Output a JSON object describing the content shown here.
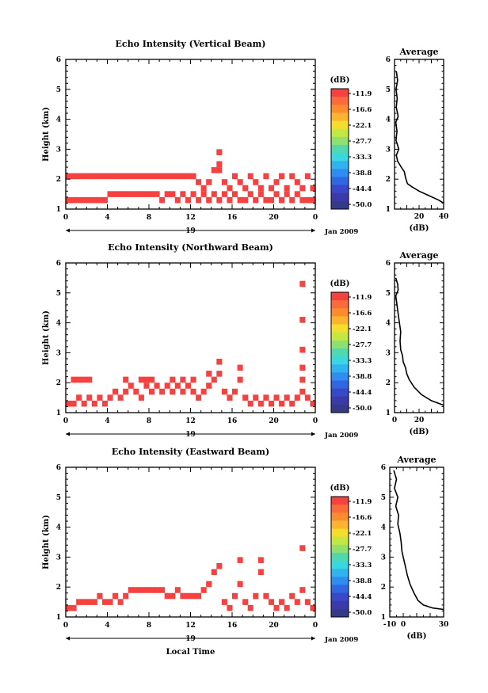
{
  "chart_data": [
    {
      "type": "heatmap",
      "title": "Echo Intensity (Vertical Beam)",
      "ylabel": "Height (km)",
      "xlim": [
        0,
        24
      ],
      "ylim": [
        1,
        6
      ],
      "x_ticks": [
        "0",
        "4",
        "8",
        "12",
        "16",
        "20",
        "0"
      ],
      "y_ticks": [
        "1",
        "2",
        "3",
        "4",
        "5",
        "6"
      ],
      "date_day": "19",
      "date_month": "Jan 2009",
      "colorbar": {
        "unit": "(dB)",
        "labels": [
          "-11.9",
          "-16.6",
          "-22.1",
          "-27.7",
          "-33.3",
          "-38.8",
          "-44.4",
          "-50.0"
        ],
        "colors": [
          "#f5413f",
          "#fa6a3a",
          "#fd8c2f",
          "#fcb430",
          "#f6dc2c",
          "#c4e842",
          "#8fe06f",
          "#50d8b0",
          "#38d8e0",
          "#30b4f0",
          "#2f8cf0",
          "#3065e4",
          "#3848c8",
          "#3a3aa8",
          "#343a88"
        ]
      },
      "cell_hours": 0.25,
      "cell_km": 0.2,
      "fill_color": "#f5413f",
      "echo_cells": [
        [
          0,
          1.3
        ],
        [
          0.5,
          1.3
        ],
        [
          1,
          1.3
        ],
        [
          1.5,
          1.3
        ],
        [
          2,
          1.3
        ],
        [
          2.5,
          1.3
        ],
        [
          3,
          1.3
        ],
        [
          3.5,
          1.3
        ],
        [
          4,
          1.5
        ],
        [
          4.5,
          1.5
        ],
        [
          5,
          1.5
        ],
        [
          5.5,
          1.5
        ],
        [
          6,
          1.5
        ],
        [
          6.5,
          1.5
        ],
        [
          7,
          1.5
        ],
        [
          7.5,
          1.5
        ],
        [
          8,
          1.5
        ],
        [
          8.5,
          1.5
        ],
        [
          9,
          1.3
        ],
        [
          9.5,
          1.5
        ],
        [
          10,
          1.5
        ],
        [
          10.5,
          1.3
        ],
        [
          11,
          1.5
        ],
        [
          11.5,
          1.3
        ],
        [
          12,
          1.5
        ],
        [
          12.5,
          1.3
        ],
        [
          13,
          1.5
        ],
        [
          13.5,
          1.3
        ],
        [
          14,
          1.5
        ],
        [
          14.5,
          1.3
        ],
        [
          15,
          1.5
        ],
        [
          15.5,
          1.3
        ],
        [
          16,
          1.5
        ],
        [
          16.5,
          1.3
        ],
        [
          17,
          1.3
        ],
        [
          17.5,
          1.5
        ],
        [
          18,
          1.3
        ],
        [
          18.5,
          1.5
        ],
        [
          19,
          1.3
        ],
        [
          19.5,
          1.3
        ],
        [
          20,
          1.5
        ],
        [
          20.5,
          1.3
        ],
        [
          21,
          1.5
        ],
        [
          21.5,
          1.3
        ],
        [
          22,
          1.5
        ],
        [
          22.5,
          1.3
        ],
        [
          23,
          1.3
        ],
        [
          23.5,
          1.3
        ],
        [
          0,
          2.1
        ],
        [
          0.5,
          2.1
        ],
        [
          1,
          2.1
        ],
        [
          1.5,
          2.1
        ],
        [
          2,
          2.1
        ],
        [
          2.5,
          2.1
        ],
        [
          3,
          2.1
        ],
        [
          3.5,
          2.1
        ],
        [
          4,
          2.1
        ],
        [
          4.5,
          2.1
        ],
        [
          5,
          2.1
        ],
        [
          5.5,
          2.1
        ],
        [
          6,
          2.1
        ],
        [
          6.5,
          2.1
        ],
        [
          7,
          2.1
        ],
        [
          7.5,
          2.1
        ],
        [
          8,
          2.1
        ],
        [
          8.5,
          2.1
        ],
        [
          9,
          2.1
        ],
        [
          9.5,
          2.1
        ],
        [
          10,
          2.1
        ],
        [
          10.5,
          2.1
        ],
        [
          11,
          2.1
        ],
        [
          11.5,
          2.1
        ],
        [
          12,
          2.1
        ],
        [
          12.5,
          1.9
        ],
        [
          13,
          1.7
        ],
        [
          13.5,
          1.9
        ],
        [
          14,
          2.3
        ],
        [
          14.5,
          2.3
        ],
        [
          14.5,
          2.5
        ],
        [
          14.5,
          2.9
        ],
        [
          15,
          1.9
        ],
        [
          15.5,
          1.7
        ],
        [
          16,
          2.1
        ],
        [
          16.5,
          1.9
        ],
        [
          17,
          1.7
        ],
        [
          17.5,
          2.1
        ],
        [
          18,
          1.9
        ],
        [
          18.5,
          1.7
        ],
        [
          19,
          2.1
        ],
        [
          19.5,
          1.7
        ],
        [
          20,
          1.9
        ],
        [
          20.5,
          2.1
        ],
        [
          21,
          1.7
        ],
        [
          21.5,
          2.1
        ],
        [
          22,
          1.9
        ],
        [
          22.5,
          1.7
        ],
        [
          23,
          2.1
        ],
        [
          23.5,
          1.7
        ]
      ]
    },
    {
      "type": "heatmap",
      "title": "Echo Intensity (Northward Beam)",
      "ylabel": "Height (km)",
      "xlim": [
        0,
        24
      ],
      "ylim": [
        1,
        6
      ],
      "x_ticks": [
        "0",
        "4",
        "8",
        "12",
        "16",
        "20",
        "0"
      ],
      "y_ticks": [
        "1",
        "2",
        "3",
        "4",
        "5",
        "6"
      ],
      "date_day": "19",
      "date_month": "Jan 2009",
      "colorbar": {
        "unit": "(dB)",
        "labels": [
          "-11.9",
          "-16.6",
          "-22.1",
          "-27.7",
          "-33.3",
          "-38.8",
          "-44.4",
          "-50.0"
        ],
        "colors": [
          "#f5413f",
          "#fa6a3a",
          "#fd8c2f",
          "#fcb430",
          "#f6dc2c",
          "#c4e842",
          "#8fe06f",
          "#50d8b0",
          "#38d8e0",
          "#30b4f0",
          "#2f8cf0",
          "#3065e4",
          "#3848c8",
          "#3a3aa8",
          "#343a88"
        ]
      },
      "cell_hours": 0.25,
      "cell_km": 0.2,
      "fill_color": "#f5413f",
      "echo_cells": [
        [
          0,
          1.3
        ],
        [
          0.5,
          1.3
        ],
        [
          1,
          1.5
        ],
        [
          1.5,
          1.3
        ],
        [
          2,
          1.5
        ],
        [
          2.5,
          1.3
        ],
        [
          3,
          1.5
        ],
        [
          3.5,
          1.3
        ],
        [
          4,
          1.5
        ],
        [
          4.5,
          1.7
        ],
        [
          5,
          1.5
        ],
        [
          5.5,
          1.7
        ],
        [
          6,
          1.9
        ],
        [
          6.5,
          1.7
        ],
        [
          7,
          1.5
        ],
        [
          7.5,
          1.9
        ],
        [
          8,
          1.7
        ],
        [
          8.5,
          1.9
        ],
        [
          9,
          1.7
        ],
        [
          9.5,
          1.9
        ],
        [
          10,
          1.7
        ],
        [
          10.5,
          1.9
        ],
        [
          11,
          1.7
        ],
        [
          11.5,
          1.9
        ],
        [
          12,
          1.7
        ],
        [
          12.5,
          1.5
        ],
        [
          13,
          1.7
        ],
        [
          13.5,
          1.9
        ],
        [
          14,
          2.1
        ],
        [
          14.5,
          2.3
        ],
        [
          14.5,
          2.7
        ],
        [
          15,
          1.7
        ],
        [
          15.5,
          1.5
        ],
        [
          16,
          1.7
        ],
        [
          16.5,
          2.1
        ],
        [
          16.5,
          2.5
        ],
        [
          17,
          1.5
        ],
        [
          17.5,
          1.3
        ],
        [
          18,
          1.5
        ],
        [
          18.5,
          1.3
        ],
        [
          19,
          1.5
        ],
        [
          19.5,
          1.3
        ],
        [
          20,
          1.5
        ],
        [
          20.5,
          1.3
        ],
        [
          21,
          1.5
        ],
        [
          21.5,
          1.3
        ],
        [
          22,
          1.5
        ],
        [
          22.5,
          1.7
        ],
        [
          22.5,
          2.1
        ],
        [
          22.5,
          2.5
        ],
        [
          22.5,
          3.1
        ],
        [
          22.5,
          4.1
        ],
        [
          22.5,
          5.3
        ],
        [
          23,
          1.5
        ],
        [
          23.5,
          1.3
        ],
        [
          0.5,
          2.1
        ],
        [
          1,
          2.1
        ],
        [
          1.5,
          2.1
        ],
        [
          2,
          2.1
        ],
        [
          5.5,
          2.1
        ],
        [
          7,
          2.1
        ],
        [
          7.5,
          2.1
        ],
        [
          8,
          2.1
        ],
        [
          10,
          2.1
        ],
        [
          11,
          2.1
        ],
        [
          12,
          2.1
        ],
        [
          13.5,
          2.3
        ]
      ]
    },
    {
      "type": "heatmap",
      "title": "Echo Intensity (Eastward Beam)",
      "ylabel": "Height (km)",
      "xlabel": "Local Time",
      "xlim": [
        0,
        24
      ],
      "ylim": [
        1,
        6
      ],
      "x_ticks": [
        "0",
        "4",
        "8",
        "12",
        "16",
        "20",
        "0"
      ],
      "y_ticks": [
        "1",
        "2",
        "3",
        "4",
        "5",
        "6"
      ],
      "date_day": "19",
      "date_month": "Jan 2009",
      "colorbar": {
        "unit": "(dB)",
        "labels": [
          "-11.9",
          "-16.6",
          "-22.1",
          "-27.7",
          "-33.3",
          "-38.8",
          "-44.4",
          "-50.0"
        ],
        "colors": [
          "#f5413f",
          "#fa6a3a",
          "#fd8c2f",
          "#fcb430",
          "#f6dc2c",
          "#c4e842",
          "#8fe06f",
          "#50d8b0",
          "#38d8e0",
          "#30b4f0",
          "#2f8cf0",
          "#3065e4",
          "#3848c8",
          "#3a3aa8",
          "#343a88"
        ]
      },
      "cell_hours": 0.25,
      "cell_km": 0.2,
      "fill_color": "#f5413f",
      "echo_cells": [
        [
          0,
          1.3
        ],
        [
          0.5,
          1.3
        ],
        [
          1,
          1.5
        ],
        [
          1.5,
          1.5
        ],
        [
          2,
          1.5
        ],
        [
          2.5,
          1.5
        ],
        [
          3,
          1.7
        ],
        [
          3.5,
          1.5
        ],
        [
          4,
          1.5
        ],
        [
          4.5,
          1.7
        ],
        [
          5,
          1.5
        ],
        [
          5.5,
          1.7
        ],
        [
          6,
          1.9
        ],
        [
          6.5,
          1.9
        ],
        [
          7,
          1.9
        ],
        [
          7.5,
          1.9
        ],
        [
          8,
          1.9
        ],
        [
          8.5,
          1.9
        ],
        [
          9,
          1.9
        ],
        [
          9.5,
          1.7
        ],
        [
          10,
          1.7
        ],
        [
          10.5,
          1.9
        ],
        [
          11,
          1.7
        ],
        [
          11.5,
          1.7
        ],
        [
          12,
          1.7
        ],
        [
          12.5,
          1.7
        ],
        [
          13,
          1.9
        ],
        [
          13.5,
          2.1
        ],
        [
          14,
          2.5
        ],
        [
          14.5,
          2.7
        ],
        [
          15,
          1.5
        ],
        [
          15.5,
          1.3
        ],
        [
          16,
          1.7
        ],
        [
          16.5,
          2.1
        ],
        [
          16.5,
          2.9
        ],
        [
          17,
          1.5
        ],
        [
          17.5,
          1.3
        ],
        [
          18,
          1.7
        ],
        [
          18.5,
          2.5
        ],
        [
          18.5,
          2.9
        ],
        [
          19,
          1.7
        ],
        [
          19.5,
          1.5
        ],
        [
          20,
          1.3
        ],
        [
          20.5,
          1.5
        ],
        [
          21,
          1.3
        ],
        [
          21.5,
          1.7
        ],
        [
          22,
          1.5
        ],
        [
          22.5,
          1.9
        ],
        [
          22.5,
          3.3
        ],
        [
          23,
          1.5
        ],
        [
          23.5,
          1.3
        ]
      ]
    },
    {
      "type": "line",
      "title": "Average",
      "xlabel": "(dB)",
      "xlim": [
        0,
        40
      ],
      "ylim": [
        1,
        6
      ],
      "x_ticks": [
        {
          "v": 20,
          "label": "20"
        },
        {
          "v": 40,
          "label": "40"
        }
      ],
      "y_ticks": [
        "1",
        "2",
        "3",
        "4",
        "5",
        "6"
      ],
      "points": [
        [
          1.5,
          5.6
        ],
        [
          2.5,
          5.3
        ],
        [
          1.2,
          5.0
        ],
        [
          2.2,
          4.7
        ],
        [
          1.4,
          4.4
        ],
        [
          3.0,
          4.1
        ],
        [
          1.0,
          3.9
        ],
        [
          2.0,
          3.6
        ],
        [
          1.2,
          3.3
        ],
        [
          3.5,
          3.0
        ],
        [
          1.5,
          2.8
        ],
        [
          2.5,
          2.6
        ],
        [
          5.5,
          2.4
        ],
        [
          8.0,
          2.25
        ],
        [
          9.0,
          2.05
        ],
        [
          10.5,
          1.85
        ],
        [
          14.0,
          1.75
        ],
        [
          20.0,
          1.6
        ],
        [
          28.0,
          1.45
        ],
        [
          36.0,
          1.3
        ],
        [
          40.0,
          1.2
        ]
      ]
    },
    {
      "type": "line",
      "title": "Average",
      "xlabel": "(dB)",
      "xlim": [
        0,
        40
      ],
      "ylim": [
        1,
        6
      ],
      "x_ticks": [
        {
          "v": 0,
          "label": "0"
        },
        {
          "v": 20,
          "label": "20"
        }
      ],
      "y_ticks": [
        "1",
        "2",
        "3",
        "4",
        "5",
        "6"
      ],
      "points": [
        [
          1.0,
          5.5
        ],
        [
          2.5,
          5.3
        ],
        [
          3.0,
          5.1
        ],
        [
          1.0,
          4.9
        ],
        [
          2.0,
          4.6
        ],
        [
          3.0,
          4.3
        ],
        [
          4.0,
          4.0
        ],
        [
          5.0,
          3.7
        ],
        [
          4.5,
          3.4
        ],
        [
          5.0,
          3.1
        ],
        [
          6.5,
          2.9
        ],
        [
          7.0,
          2.7
        ],
        [
          9.0,
          2.5
        ],
        [
          10.0,
          2.3
        ],
        [
          12.0,
          2.1
        ],
        [
          16.0,
          1.85
        ],
        [
          22.0,
          1.6
        ],
        [
          30.0,
          1.4
        ],
        [
          40.0,
          1.25
        ]
      ]
    },
    {
      "type": "line",
      "title": "Average",
      "xlabel": "(dB)",
      "xlim": [
        -10,
        30
      ],
      "ylim": [
        1,
        6
      ],
      "x_ticks": [
        {
          "v": -10,
          "label": "-10"
        },
        {
          "v": 0,
          "label": "0"
        },
        {
          "v": 30,
          "label": "30"
        }
      ],
      "y_ticks": [
        "1",
        "2",
        "3",
        "4",
        "5",
        "6"
      ],
      "points": [
        [
          -7.0,
          5.9
        ],
        [
          -5.0,
          5.6
        ],
        [
          -6.5,
          5.3
        ],
        [
          -4.0,
          5.0
        ],
        [
          -5.5,
          4.7
        ],
        [
          -3.5,
          4.4
        ],
        [
          -4.0,
          4.1
        ],
        [
          -2.5,
          3.8
        ],
        [
          -1.5,
          3.5
        ],
        [
          -1.0,
          3.2
        ],
        [
          0.0,
          3.0
        ],
        [
          1.5,
          2.7
        ],
        [
          3.0,
          2.4
        ],
        [
          5.0,
          2.1
        ],
        [
          6.5,
          1.95
        ],
        [
          8.0,
          1.8
        ],
        [
          11.0,
          1.55
        ],
        [
          15.0,
          1.4
        ],
        [
          22.0,
          1.3
        ],
        [
          30.0,
          1.25
        ]
      ]
    }
  ]
}
